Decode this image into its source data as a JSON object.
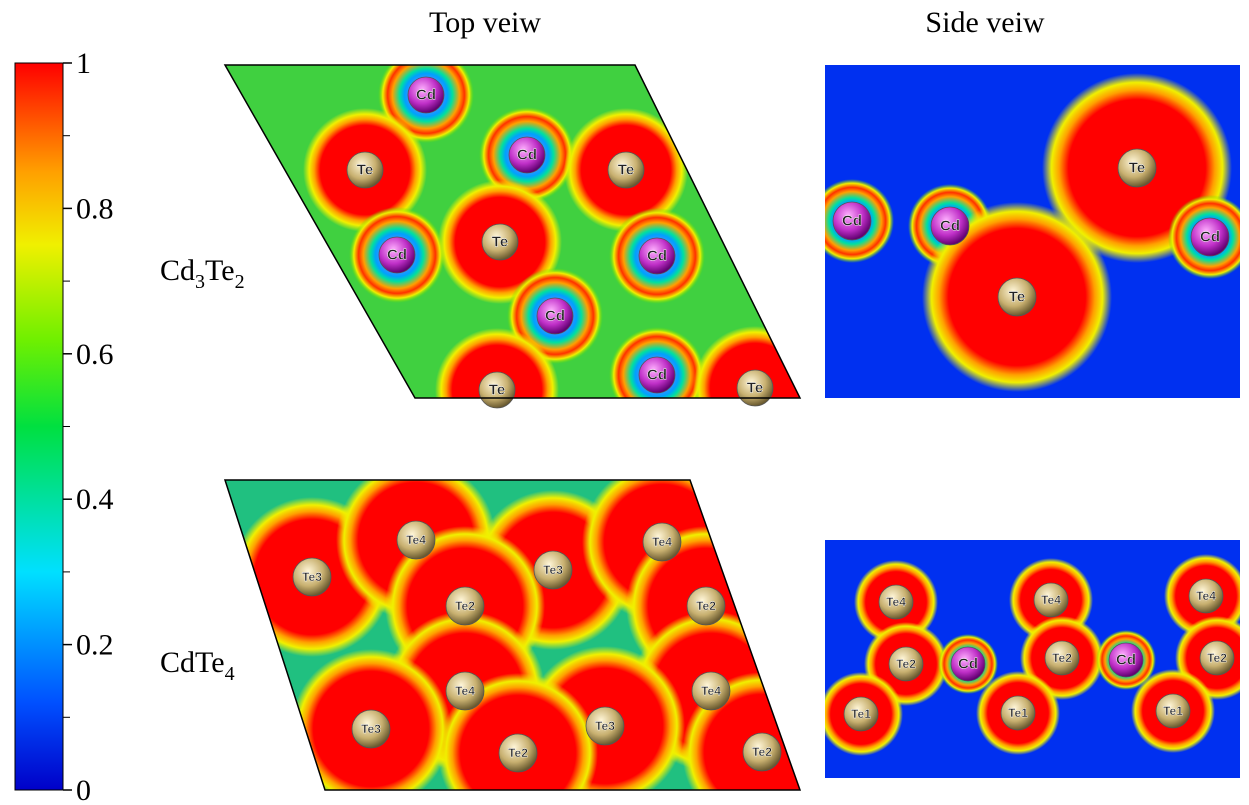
{
  "colorbar": {
    "range": [
      0,
      1
    ],
    "ticks": [
      0,
      0.2,
      0.4,
      0.6,
      0.8,
      1
    ]
  },
  "columns": [
    "Top veiw",
    "Side veiw"
  ],
  "rows": [
    {
      "label": [
        "Cd",
        "3",
        "Te",
        "2"
      ],
      "top_atoms": [
        "Cd",
        "Te",
        "Cd",
        "Te",
        "Cd",
        "Te",
        "Cd",
        "Cd",
        "Te",
        "Cd",
        "Te"
      ],
      "side_atoms": [
        "Cd",
        "Cd",
        "Te",
        "Cd",
        "Te"
      ]
    },
    {
      "label": [
        "CdTe",
        "4"
      ],
      "top_atoms": [
        "Te3",
        "Te4",
        "Te3",
        "Te4",
        "Te2",
        "Te2",
        "Te4",
        "Te3",
        "Te4",
        "Te3",
        "Te2",
        "Te2"
      ],
      "side_atoms": [
        "Te4",
        "Te4",
        "Te4",
        "Te2",
        "Cd",
        "Te2",
        "Cd",
        "Te2",
        "Te1",
        "Te1",
        "Te1"
      ]
    }
  ]
}
